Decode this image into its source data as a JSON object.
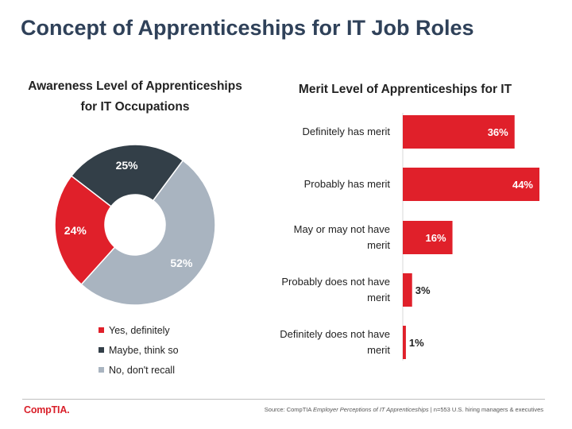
{
  "title": "Concept of Apprenticeships for IT Job Roles",
  "colors": {
    "red": "#e0202a",
    "dark": "#333f48",
    "gray": "#a9b4c0",
    "title": "#2f4159"
  },
  "chart_data": [
    {
      "type": "pie",
      "variant": "donut",
      "title_lines": [
        "Awareness Level of Apprenticeships",
        "for IT Occupations"
      ],
      "slices": [
        {
          "label": "Yes, definitely",
          "value": 24,
          "display": "24%",
          "color": "#e0202a"
        },
        {
          "label": "Maybe, think so",
          "value": 25,
          "display": "25%",
          "color": "#333f48"
        },
        {
          "label": "No, don't recall",
          "value": 52,
          "display": "52%",
          "color": "#a9b4c0"
        }
      ],
      "legend_placement": "bottom"
    },
    {
      "type": "bar",
      "orientation": "horizontal",
      "title": "Merit Level of Apprenticeships for IT",
      "categories": [
        [
          "Definitely has merit"
        ],
        [
          "Probably has merit"
        ],
        [
          "May or may not have",
          "merit"
        ],
        [
          "Probably does not have",
          "merit"
        ],
        [
          "Definitely does not have",
          "merit"
        ]
      ],
      "values": [
        36,
        44,
        16,
        3,
        1
      ],
      "labels": [
        "36%",
        "44%",
        "16%",
        "3%",
        "1%"
      ],
      "xlim": [
        0,
        44
      ],
      "color": "#e0202a",
      "grid": false
    }
  ],
  "footer": {
    "logo": "CompTIA.",
    "source_prefix": "Source: CompTIA ",
    "source_italic": "Employer Perceptions of IT Apprenticeships",
    "source_suffix": " | n=553 U.S. hiring managers & executives"
  }
}
